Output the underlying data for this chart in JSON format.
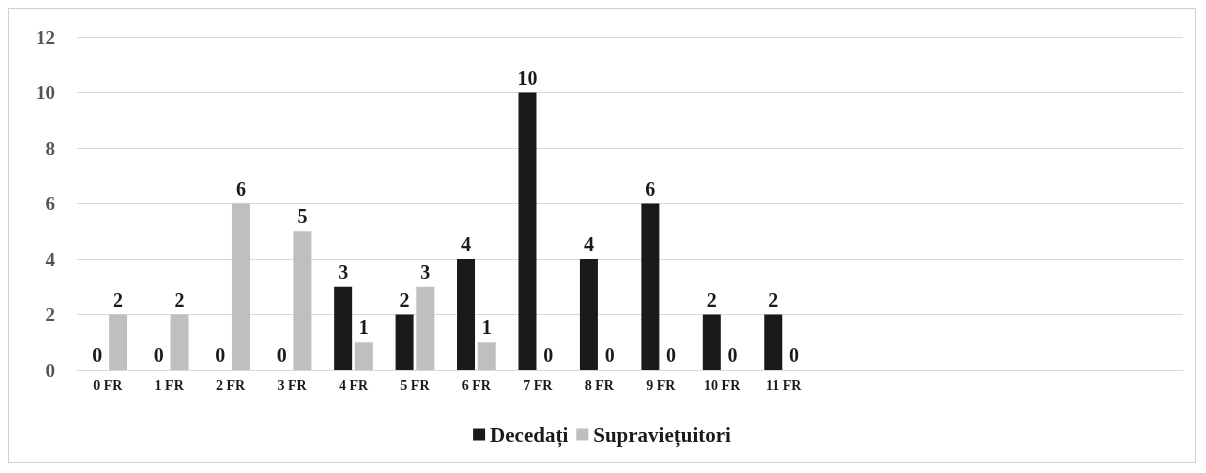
{
  "chart_data": {
    "type": "bar",
    "categories": [
      "0 FR",
      "1 FR",
      "2 FR",
      "3 FR",
      "4 FR",
      "5 FR",
      "6 FR",
      "7 FR",
      "8 FR",
      "9 FR",
      "10 FR",
      "11 FR",
      null,
      null,
      null,
      null,
      null,
      null
    ],
    "series": [
      {
        "name": "Decedați",
        "color": "#1a1a1a",
        "values": [
          0,
          0,
          0,
          0,
          3,
          2,
          4,
          10,
          4,
          6,
          2,
          2,
          null,
          null,
          null,
          null,
          null,
          null
        ]
      },
      {
        "name": "Supraviețuitori",
        "color": "#bfbfbf",
        "values": [
          2,
          2,
          6,
          5,
          1,
          3,
          1,
          0,
          0,
          0,
          0,
          0,
          null,
          null,
          null,
          null,
          null,
          null
        ]
      }
    ],
    "ylim": [
      0,
      12
    ],
    "yticks": [
      0,
      2,
      4,
      6,
      8,
      10,
      12
    ],
    "grid": "y",
    "legend": "bottom",
    "data_labels": true
  }
}
